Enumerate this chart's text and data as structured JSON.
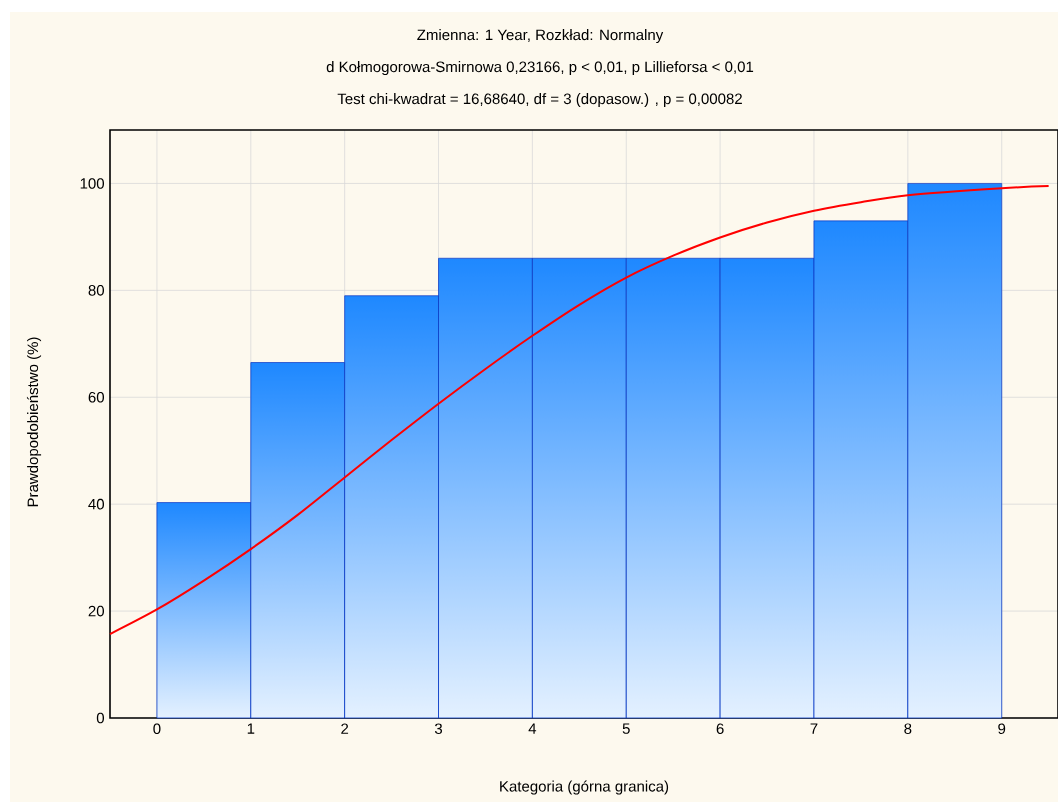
{
  "chart_data": {
    "type": "histogram",
    "title": "Zmienna:  1 Year, Rozkład: Normalny",
    "subtitle": "d Kołmogorowa-Smirnowa 0,23166, p < 0,01, p Lillieforsa < 0,01",
    "annotations": [
      "Test chi-kwadrat = 16,68640, df = 3 (dopasow.) , p = 0,00082"
    ],
    "xlabel": "Kategoria (górna granica)",
    "ylabel": "Prawdopodobieństwo (%)",
    "bins": [
      0,
      1,
      2,
      3,
      4,
      5,
      6,
      7,
      8,
      9
    ],
    "values": [
      40.3,
      66.5,
      79.0,
      86.0,
      86.0,
      86.0,
      86.0,
      93.0,
      100
    ],
    "color": "#1e88ff",
    "series": [
      {
        "type": "line",
        "color": "#ff0000",
        "x": [
          -0.5,
          0,
          0.5,
          1,
          1.5,
          2,
          2.5,
          3,
          3.5,
          4,
          4.5,
          5,
          5.5,
          6,
          6.5,
          7,
          7.5,
          8,
          9,
          9.5
        ],
        "values": [
          15.7,
          20.3,
          25.7,
          31.6,
          38,
          45.0,
          52,
          58.8,
          65.3,
          71.5,
          77.3,
          82.4,
          86.5,
          89.9,
          92.7,
          94.9,
          96.5,
          97.8,
          99.1,
          99.5
        ]
      }
    ],
    "xlim": [
      -0.5,
      9.6
    ],
    "ylim": [
      0,
      110
    ],
    "xticks": [
      0,
      1,
      2,
      3,
      4,
      5,
      6,
      7,
      8,
      9
    ],
    "yticks": [
      0,
      20,
      40,
      60,
      80,
      100
    ],
    "grid": true
  }
}
